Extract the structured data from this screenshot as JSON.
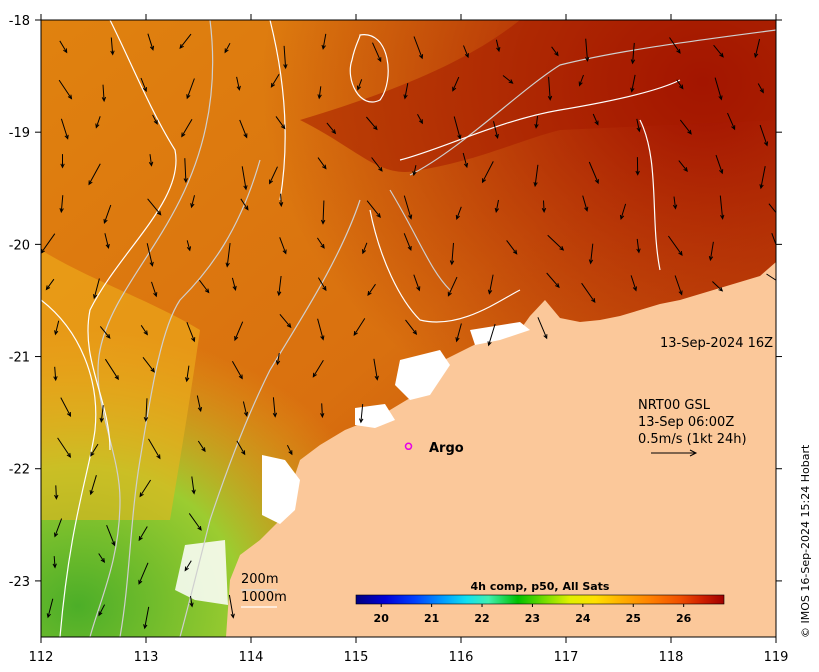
{
  "map": {
    "timestamp": "13-Sep-2024 16Z",
    "x_ticks": [
      "112",
      "113",
      "114",
      "115",
      "116",
      "117",
      "118",
      "119"
    ],
    "y_ticks": [
      "-18",
      "-19",
      "-20",
      "-21",
      "-22",
      "-23"
    ],
    "lon_range": [
      112,
      119
    ],
    "lat_range": [
      -23.5,
      -18
    ],
    "colors": {
      "ocean_warm": "#d2691e",
      "ocean_hot": "#a51c00",
      "ocean_mid": "#e8900c",
      "ocean_cool": "#c8d430",
      "ocean_green": "#5ab82a",
      "land": "#fbc89a",
      "cloud": "#ffffff",
      "argo": "#e600e6"
    }
  },
  "argo": {
    "label": "Argo",
    "lon": 115.5,
    "lat": -21.8
  },
  "currents_legend": {
    "line1": "NRT00 GSL",
    "line2": "13-Sep 06:00Z",
    "line3": "0.5m/s (1kt 24h)"
  },
  "isobath_legend": {
    "shallow": "200m",
    "deep": "1000m"
  },
  "colorbar": {
    "title": "4h comp, p50, All Sats",
    "ticks": [
      "20",
      "21",
      "22",
      "23",
      "24",
      "25",
      "26"
    ],
    "range": [
      19.5,
      26.8
    ],
    "colors": [
      "#00007f",
      "#0000d8",
      "#0040ff",
      "#00a0ff",
      "#10e0f0",
      "#40f0b0",
      "#00c000",
      "#80e000",
      "#e0f000",
      "#ffe000",
      "#ffb000",
      "#ff8000",
      "#f05000",
      "#d02000",
      "#a00000"
    ]
  },
  "credit": "© IMOS 16-Sep-2024 15:24 Hobart"
}
